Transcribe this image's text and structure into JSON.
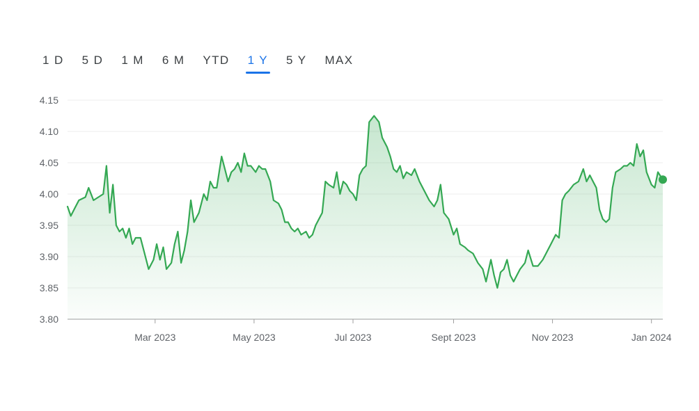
{
  "range_tabs": [
    {
      "label": "1 D",
      "active": false
    },
    {
      "label": "5 D",
      "active": false
    },
    {
      "label": "1 M",
      "active": false
    },
    {
      "label": "6 M",
      "active": false
    },
    {
      "label": "YTD",
      "active": false
    },
    {
      "label": "1 Y",
      "active": true
    },
    {
      "label": "5 Y",
      "active": false
    },
    {
      "label": "MAX",
      "active": false
    }
  ],
  "colors": {
    "line": "#34a853",
    "active_tab": "#1a73e8",
    "grid": "#eeeeee",
    "axis": "#5f6368"
  },
  "chart_data": {
    "type": "area",
    "title": "",
    "xlabel": "",
    "ylabel": "",
    "x_start": "2023-01-06",
    "x_end": "2024-01-08",
    "xlim": [
      "2023-01-06",
      "2024-01-08"
    ],
    "ylim": [
      3.8,
      4.15
    ],
    "y_ticks": [
      3.8,
      3.85,
      3.9,
      3.95,
      4.0,
      4.05,
      4.1,
      4.15
    ],
    "y_tick_labels": [
      "3.80",
      "3.85",
      "3.90",
      "3.95",
      "4.00",
      "4.05",
      "4.10",
      "4.15"
    ],
    "x_ticks": [
      "2023-03-01",
      "2023-05-01",
      "2023-07-01",
      "2023-09-01",
      "2023-11-01",
      "2024-01-01"
    ],
    "x_tick_labels": [
      "Mar 2023",
      "May 2023",
      "Jul 2023",
      "Sept 2023",
      "Nov 2023",
      "Jan 2024"
    ],
    "grid": true,
    "series": [
      {
        "values": [
          [
            "2023-01-06",
            3.98
          ],
          [
            "2023-01-08",
            3.965
          ],
          [
            "2023-01-10",
            3.975
          ],
          [
            "2023-01-13",
            3.99
          ],
          [
            "2023-01-17",
            3.995
          ],
          [
            "2023-01-19",
            4.01
          ],
          [
            "2023-01-22",
            3.99
          ],
          [
            "2023-01-25",
            3.995
          ],
          [
            "2023-01-28",
            4.0
          ],
          [
            "2023-01-30",
            4.045
          ],
          [
            "2023-02-01",
            3.97
          ],
          [
            "2023-02-03",
            4.015
          ],
          [
            "2023-02-05",
            3.95
          ],
          [
            "2023-02-07",
            3.94
          ],
          [
            "2023-02-09",
            3.945
          ],
          [
            "2023-02-11",
            3.93
          ],
          [
            "2023-02-13",
            3.945
          ],
          [
            "2023-02-15",
            3.92
          ],
          [
            "2023-02-17",
            3.93
          ],
          [
            "2023-02-20",
            3.93
          ],
          [
            "2023-02-22",
            3.91
          ],
          [
            "2023-02-25",
            3.88
          ],
          [
            "2023-02-28",
            3.895
          ],
          [
            "2023-03-02",
            3.92
          ],
          [
            "2023-03-04",
            3.895
          ],
          [
            "2023-03-06",
            3.915
          ],
          [
            "2023-03-08",
            3.88
          ],
          [
            "2023-03-11",
            3.89
          ],
          [
            "2023-03-13",
            3.92
          ],
          [
            "2023-03-15",
            3.94
          ],
          [
            "2023-03-17",
            3.89
          ],
          [
            "2023-03-19",
            3.91
          ],
          [
            "2023-03-21",
            3.94
          ],
          [
            "2023-03-23",
            3.99
          ],
          [
            "2023-03-25",
            3.955
          ],
          [
            "2023-03-28",
            3.97
          ],
          [
            "2023-03-31",
            4.0
          ],
          [
            "2023-04-02",
            3.99
          ],
          [
            "2023-04-04",
            4.02
          ],
          [
            "2023-04-06",
            4.01
          ],
          [
            "2023-04-08",
            4.01
          ],
          [
            "2023-04-11",
            4.06
          ],
          [
            "2023-04-13",
            4.04
          ],
          [
            "2023-04-15",
            4.02
          ],
          [
            "2023-04-17",
            4.035
          ],
          [
            "2023-04-19",
            4.04
          ],
          [
            "2023-04-21",
            4.05
          ],
          [
            "2023-04-23",
            4.035
          ],
          [
            "2023-04-25",
            4.065
          ],
          [
            "2023-04-27",
            4.045
          ],
          [
            "2023-04-29",
            4.045
          ],
          [
            "2023-05-02",
            4.035
          ],
          [
            "2023-05-04",
            4.045
          ],
          [
            "2023-05-06",
            4.04
          ],
          [
            "2023-05-08",
            4.04
          ],
          [
            "2023-05-11",
            4.02
          ],
          [
            "2023-05-13",
            3.99
          ],
          [
            "2023-05-16",
            3.985
          ],
          [
            "2023-05-18",
            3.975
          ],
          [
            "2023-05-20",
            3.955
          ],
          [
            "2023-05-22",
            3.955
          ],
          [
            "2023-05-24",
            3.945
          ],
          [
            "2023-05-26",
            3.94
          ],
          [
            "2023-05-28",
            3.945
          ],
          [
            "2023-05-30",
            3.935
          ],
          [
            "2023-06-02",
            3.94
          ],
          [
            "2023-06-04",
            3.93
          ],
          [
            "2023-06-06",
            3.935
          ],
          [
            "2023-06-08",
            3.95
          ],
          [
            "2023-06-10",
            3.96
          ],
          [
            "2023-06-12",
            3.97
          ],
          [
            "2023-06-14",
            4.02
          ],
          [
            "2023-06-16",
            4.015
          ],
          [
            "2023-06-19",
            4.01
          ],
          [
            "2023-06-21",
            4.035
          ],
          [
            "2023-06-23",
            4.0
          ],
          [
            "2023-06-25",
            4.02
          ],
          [
            "2023-06-27",
            4.015
          ],
          [
            "2023-06-29",
            4.005
          ],
          [
            "2023-07-01",
            4.0
          ],
          [
            "2023-07-03",
            3.99
          ],
          [
            "2023-07-05",
            4.03
          ],
          [
            "2023-07-07",
            4.04
          ],
          [
            "2023-07-09",
            4.045
          ],
          [
            "2023-07-11",
            4.115
          ],
          [
            "2023-07-14",
            4.125
          ],
          [
            "2023-07-17",
            4.115
          ],
          [
            "2023-07-19",
            4.09
          ],
          [
            "2023-07-22",
            4.075
          ],
          [
            "2023-07-24",
            4.06
          ],
          [
            "2023-07-26",
            4.04
          ],
          [
            "2023-07-28",
            4.035
          ],
          [
            "2023-07-30",
            4.045
          ],
          [
            "2023-08-01",
            4.025
          ],
          [
            "2023-08-03",
            4.035
          ],
          [
            "2023-08-06",
            4.03
          ],
          [
            "2023-08-08",
            4.04
          ],
          [
            "2023-08-11",
            4.02
          ],
          [
            "2023-08-14",
            4.005
          ],
          [
            "2023-08-17",
            3.99
          ],
          [
            "2023-08-20",
            3.98
          ],
          [
            "2023-08-22",
            3.99
          ],
          [
            "2023-08-24",
            4.015
          ],
          [
            "2023-08-26",
            3.97
          ],
          [
            "2023-08-29",
            3.96
          ],
          [
            "2023-09-01",
            3.935
          ],
          [
            "2023-09-03",
            3.945
          ],
          [
            "2023-09-05",
            3.92
          ],
          [
            "2023-09-08",
            3.915
          ],
          [
            "2023-09-10",
            3.91
          ],
          [
            "2023-09-13",
            3.905
          ],
          [
            "2023-09-16",
            3.89
          ],
          [
            "2023-09-19",
            3.88
          ],
          [
            "2023-09-21",
            3.86
          ],
          [
            "2023-09-24",
            3.895
          ],
          [
            "2023-09-26",
            3.87
          ],
          [
            "2023-09-28",
            3.85
          ],
          [
            "2023-09-30",
            3.875
          ],
          [
            "2023-10-02",
            3.88
          ],
          [
            "2023-10-04",
            3.895
          ],
          [
            "2023-10-06",
            3.87
          ],
          [
            "2023-10-08",
            3.86
          ],
          [
            "2023-10-10",
            3.87
          ],
          [
            "2023-10-12",
            3.88
          ],
          [
            "2023-10-15",
            3.89
          ],
          [
            "2023-10-17",
            3.91
          ],
          [
            "2023-10-20",
            3.885
          ],
          [
            "2023-10-23",
            3.885
          ],
          [
            "2023-10-26",
            3.895
          ],
          [
            "2023-10-28",
            3.905
          ],
          [
            "2023-10-31",
            3.92
          ],
          [
            "2023-11-03",
            3.935
          ],
          [
            "2023-11-05",
            3.93
          ],
          [
            "2023-11-07",
            3.99
          ],
          [
            "2023-11-09",
            4.0
          ],
          [
            "2023-11-11",
            4.005
          ],
          [
            "2023-11-14",
            4.015
          ],
          [
            "2023-11-17",
            4.02
          ],
          [
            "2023-11-20",
            4.04
          ],
          [
            "2023-11-22",
            4.02
          ],
          [
            "2023-11-24",
            4.03
          ],
          [
            "2023-11-26",
            4.02
          ],
          [
            "2023-11-28",
            4.01
          ],
          [
            "2023-11-30",
            3.975
          ],
          [
            "2023-12-02",
            3.96
          ],
          [
            "2023-12-04",
            3.955
          ],
          [
            "2023-12-06",
            3.96
          ],
          [
            "2023-12-08",
            4.01
          ],
          [
            "2023-12-10",
            4.035
          ],
          [
            "2023-12-13",
            4.04
          ],
          [
            "2023-12-15",
            4.045
          ],
          [
            "2023-12-17",
            4.045
          ],
          [
            "2023-12-19",
            4.05
          ],
          [
            "2023-12-21",
            4.045
          ],
          [
            "2023-12-23",
            4.08
          ],
          [
            "2023-12-25",
            4.06
          ],
          [
            "2023-12-27",
            4.07
          ],
          [
            "2023-12-29",
            4.035
          ],
          [
            "2024-01-01",
            4.015
          ],
          [
            "2024-01-03",
            4.01
          ],
          [
            "2024-01-05",
            4.035
          ],
          [
            "2024-01-08",
            4.023
          ]
        ]
      }
    ]
  }
}
